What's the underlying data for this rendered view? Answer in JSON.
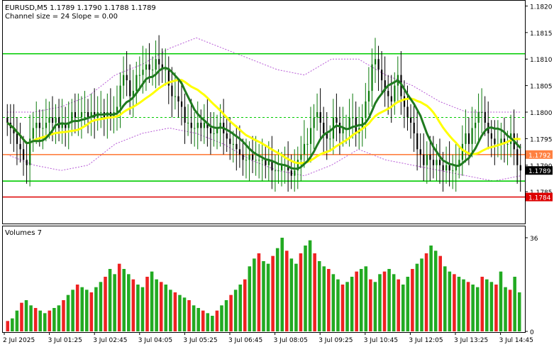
{
  "header": {
    "line1": "EURUSD,M5  1.1789 1.1790 1.1788 1.1789",
    "line2": "Channel size = 24 Slope = 0.00"
  },
  "volume_panel": {
    "label": "Volumes 7"
  },
  "colors": {
    "bull": "#0a7a0a",
    "bear": "#000000",
    "sma_slow": "#ffff00",
    "sma_fast": "#1f7a1f",
    "envelope": "#b75ad6",
    "green_level": "#00cc00",
    "orange_level": "#ff8040",
    "red_level": "#dd0000",
    "vol_green": "#22aa22",
    "vol_red": "#ee2222"
  },
  "chart_data": [
    {
      "type": "candlestick",
      "symbol": "EURUSD",
      "timeframe": "M5",
      "ylim": [
        1.1779,
        1.1821
      ],
      "y_ticks": [
        "1.1820",
        "1.1815",
        "1.1810",
        "1.1805",
        "1.1800",
        "1.1795",
        "1.1790",
        "1.1785"
      ],
      "x_ticks": [
        "2 Jul 2025",
        "3 Jul 01:25",
        "3 Jul 02:45",
        "3 Jul 04:05",
        "3 Jul 05:25",
        "3 Jul 06:45",
        "3 Jul 08:05",
        "3 Jul 09:25",
        "3 Jul 10:45",
        "3 Jul 12:05",
        "3 Jul 13:25",
        "3 Jul 14:45"
      ],
      "close_series": [
        1.1798,
        1.1797,
        1.1796,
        1.1794,
        1.1793,
        1.1791,
        1.179,
        1.1795,
        1.1797,
        1.1798,
        1.1797,
        1.1797,
        1.1798,
        1.1799,
        1.1798,
        1.1799,
        1.1797,
        1.1798,
        1.1797,
        1.1798,
        1.18,
        1.1799,
        1.1799,
        1.18,
        1.18,
        1.1799,
        1.18,
        1.1799,
        1.18,
        1.18,
        1.1799,
        1.18,
        1.1799,
        1.18,
        1.1801,
        1.1805,
        1.1807,
        1.1806,
        1.1803,
        1.1804,
        1.1807,
        1.1807,
        1.1808,
        1.1809,
        1.1808,
        1.1808,
        1.181,
        1.1809,
        1.1808,
        1.1808,
        1.1805,
        1.1803,
        1.1803,
        1.1802,
        1.1801,
        1.1798,
        1.1798,
        1.1797,
        1.1797,
        1.1798,
        1.1797,
        1.1798,
        1.1797,
        1.1796,
        1.1796,
        1.1797,
        1.1798,
        1.1796,
        1.1795,
        1.1794,
        1.1794,
        1.1793,
        1.1792,
        1.1791,
        1.1791,
        1.1792,
        1.1791,
        1.1791,
        1.1791,
        1.1791,
        1.179,
        1.1791,
        1.1789,
        1.1789,
        1.1789,
        1.179,
        1.179,
        1.1789,
        1.1788,
        1.1789,
        1.1791,
        1.1792,
        1.1794,
        1.1794,
        1.1797,
        1.1799,
        1.18,
        1.1798,
        1.1796,
        1.1795,
        1.1795,
        1.1799,
        1.1798,
        1.1796,
        1.1797,
        1.1797,
        1.1799,
        1.1799,
        1.1796,
        1.1797,
        1.1799,
        1.1802,
        1.1804,
        1.1809,
        1.181,
        1.1808,
        1.1806,
        1.1804,
        1.1803,
        1.1802,
        1.1805,
        1.1807,
        1.1803,
        1.1801,
        1.1799,
        1.1798,
        1.1796,
        1.1793,
        1.1792,
        1.179,
        1.1792,
        1.1791,
        1.179,
        1.1791,
        1.179,
        1.1789,
        1.179,
        1.1789,
        1.1789,
        1.179,
        1.1791,
        1.1794,
        1.1796,
        1.1794,
        1.1797,
        1.1798,
        1.18,
        1.18,
        1.1798,
        1.1796,
        1.1795,
        1.1794,
        1.1794,
        1.1795,
        1.1794,
        1.1794,
        1.1796,
        1.1793,
        1.179,
        1.1789
      ],
      "envelope_upper": [
        1.18,
        1.18,
        1.1801,
        1.1803,
        1.1807,
        1.1809,
        1.1812,
        1.1814,
        1.1812,
        1.181,
        1.1808,
        1.1807,
        1.181,
        1.181,
        1.1807,
        1.1805,
        1.1802,
        1.18,
        1.18,
        1.18
      ],
      "envelope_lower": [
        1.1792,
        1.179,
        1.1789,
        1.179,
        1.1794,
        1.1796,
        1.1797,
        1.1796,
        1.1794,
        1.1791,
        1.1789,
        1.1788,
        1.179,
        1.1793,
        1.1791,
        1.179,
        1.1789,
        1.1788,
        1.1787,
        1.1788
      ],
      "levels": [
        {
          "value": 1.1811,
          "label": "",
          "color": "#00cc00"
        },
        {
          "value": 1.1799,
          "label": "",
          "color": "#00cc00",
          "dashed": true
        },
        {
          "value": 1.1792,
          "label": "1.1792",
          "color": "#ff8040"
        },
        {
          "value": 1.1789,
          "label": "1.1789",
          "color": "#000000"
        },
        {
          "value": 1.1787,
          "label": "",
          "color": "#00cc00"
        },
        {
          "value": 1.1784,
          "label": "1.1784",
          "color": "#dd0000"
        }
      ],
      "grid": false
    },
    {
      "type": "bar",
      "title": "Volumes 7",
      "ylim": [
        0,
        36
      ],
      "y_ticks": [
        "36",
        "0"
      ],
      "values": [
        4,
        5,
        8,
        11,
        12,
        10,
        9,
        8,
        7,
        8,
        9,
        10,
        12,
        14,
        16,
        18,
        17,
        16,
        15,
        17,
        19,
        21,
        24,
        22,
        26,
        24,
        22,
        20,
        18,
        17,
        21,
        23,
        20,
        19,
        18,
        16,
        15,
        14,
        13,
        12,
        10,
        9,
        8,
        7,
        6,
        8,
        10,
        12,
        14,
        16,
        18,
        20,
        25,
        28,
        30,
        27,
        26,
        29,
        32,
        36,
        31,
        28,
        26,
        30,
        33,
        35,
        30,
        27,
        25,
        24,
        22,
        20,
        18,
        19,
        21,
        23,
        24,
        25,
        20,
        19,
        22,
        23,
        24,
        22,
        20,
        18,
        21,
        24,
        26,
        28,
        30,
        33,
        31,
        29,
        25,
        23,
        22,
        21,
        20,
        19,
        18,
        17,
        21,
        20,
        19,
        18,
        23,
        17,
        16,
        21,
        15
      ],
      "grid": false
    }
  ]
}
